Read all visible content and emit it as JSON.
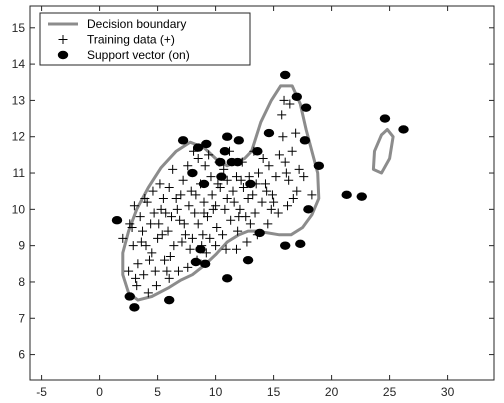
{
  "chart_data": {
    "type": "scatter",
    "title": "",
    "xlabel": "",
    "ylabel": "",
    "xlim": [
      -6,
      34
    ],
    "ylim": [
      5.3,
      15.6
    ],
    "xticks": [
      -5,
      0,
      5,
      10,
      15,
      20,
      25,
      30
    ],
    "yticks": [
      6,
      7,
      8,
      9,
      10,
      11,
      12,
      13,
      14,
      15
    ],
    "grid": false,
    "legend_position": "top-left",
    "colors": {
      "boundary": "#8c8c8c",
      "training": "#000000",
      "support": "#000000",
      "axis": "#262626"
    },
    "legend": [
      {
        "key": "boundary",
        "label": "Decision boundary"
      },
      {
        "key": "training",
        "label": "Training data (+)"
      },
      {
        "key": "support",
        "label": "Support vector (on)"
      }
    ],
    "boundary_main": [
      [
        2.5,
        9.4
      ],
      [
        2.0,
        8.8
      ],
      [
        2.0,
        8.2
      ],
      [
        2.5,
        7.7
      ],
      [
        3.3,
        7.5
      ],
      [
        4.5,
        7.6
      ],
      [
        6.0,
        7.85
      ],
      [
        7.0,
        8.05
      ],
      [
        8.0,
        8.2
      ],
      [
        9.0,
        8.45
      ],
      [
        10.0,
        8.75
      ],
      [
        11.0,
        9.1
      ],
      [
        12.0,
        9.3
      ],
      [
        12.8,
        9.4
      ],
      [
        13.5,
        9.4
      ],
      [
        14.5,
        9.35
      ],
      [
        15.5,
        9.3
      ],
      [
        16.5,
        9.3
      ],
      [
        17.5,
        9.5
      ],
      [
        18.3,
        9.85
      ],
      [
        18.9,
        10.3
      ],
      [
        18.8,
        11.0
      ],
      [
        18.3,
        11.6
      ],
      [
        17.8,
        12.2
      ],
      [
        17.3,
        12.9
      ],
      [
        16.6,
        13.4
      ],
      [
        15.6,
        13.4
      ],
      [
        14.8,
        13.0
      ],
      [
        13.9,
        12.4
      ],
      [
        13.1,
        11.6
      ],
      [
        12.5,
        11.4
      ],
      [
        11.0,
        11.2
      ],
      [
        10.0,
        11.4
      ],
      [
        9.0,
        11.7
      ],
      [
        7.8,
        11.85
      ],
      [
        6.6,
        11.6
      ],
      [
        5.3,
        11.15
      ],
      [
        4.2,
        10.6
      ],
      [
        3.2,
        10.0
      ],
      [
        2.5,
        9.4
      ]
    ],
    "boundary_island": [
      [
        24.8,
        12.2
      ],
      [
        25.3,
        12.0
      ],
      [
        25.0,
        11.4
      ],
      [
        24.3,
        11.0
      ],
      [
        23.6,
        11.1
      ],
      [
        23.7,
        11.6
      ],
      [
        24.3,
        12.05
      ],
      [
        24.8,
        12.2
      ]
    ],
    "training_points": [
      [
        2.0,
        9.2
      ],
      [
        2.6,
        9.6
      ],
      [
        3.0,
        10.1
      ],
      [
        3.5,
        9.8
      ],
      [
        2.9,
        9.0
      ],
      [
        3.7,
        9.4
      ],
      [
        4.1,
        10.2
      ],
      [
        4.6,
        10.5
      ],
      [
        4.0,
        9.0
      ],
      [
        4.5,
        8.8
      ],
      [
        5.1,
        9.6
      ],
      [
        5.5,
        10.3
      ],
      [
        5.2,
        10.7
      ],
      [
        3.3,
        8.5
      ],
      [
        3.8,
        8.2
      ],
      [
        4.3,
        8.6
      ],
      [
        4.8,
        8.3
      ],
      [
        2.5,
        8.3
      ],
      [
        3.2,
        7.9
      ],
      [
        5.0,
        9.2
      ],
      [
        5.7,
        9.9
      ],
      [
        6.0,
        10.6
      ],
      [
        6.3,
        11.1
      ],
      [
        6.6,
        10.3
      ],
      [
        6.9,
        9.7
      ],
      [
        7.2,
        10.8
      ],
      [
        7.4,
        9.3
      ],
      [
        7.7,
        10.1
      ],
      [
        7.9,
        10.5
      ],
      [
        8.2,
        9.9
      ],
      [
        8.5,
        9.6
      ],
      [
        8.7,
        10.7
      ],
      [
        9.0,
        10.2
      ],
      [
        9.3,
        9.8
      ],
      [
        9.6,
        10.9
      ],
      [
        9.8,
        10.0
      ],
      [
        10.1,
        9.5
      ],
      [
        10.4,
        10.6
      ],
      [
        10.7,
        11.1
      ],
      [
        11.0,
        10.3
      ],
      [
        11.3,
        9.7
      ],
      [
        11.5,
        10.5
      ],
      [
        11.8,
        10.9
      ],
      [
        12.1,
        10.0
      ],
      [
        12.4,
        10.6
      ],
      [
        12.6,
        9.8
      ],
      [
        12.9,
        10.9
      ],
      [
        13.2,
        10.4
      ],
      [
        13.4,
        9.9
      ],
      [
        13.7,
        11.0
      ],
      [
        14.0,
        10.2
      ],
      [
        14.3,
        10.7
      ],
      [
        14.6,
        11.2
      ],
      [
        14.9,
        10.4
      ],
      [
        15.2,
        10.9
      ],
      [
        15.5,
        11.5
      ],
      [
        15.8,
        12.0
      ],
      [
        16.0,
        11.3
      ],
      [
        16.3,
        10.8
      ],
      [
        16.6,
        11.6
      ],
      [
        16.9,
        12.1
      ],
      [
        17.2,
        11.1
      ],
      [
        15.7,
        12.6
      ],
      [
        16.4,
        12.9
      ],
      [
        15.9,
        13.0
      ],
      [
        17.0,
        10.5
      ],
      [
        16.2,
        10.1
      ],
      [
        15.4,
        9.9
      ],
      [
        14.5,
        9.6
      ],
      [
        13.6,
        9.3
      ],
      [
        12.7,
        9.1
      ],
      [
        11.8,
        8.9
      ],
      [
        10.9,
        8.9
      ],
      [
        10.0,
        9.0
      ],
      [
        9.2,
        8.8
      ],
      [
        8.4,
        8.6
      ],
      [
        7.6,
        8.4
      ],
      [
        6.8,
        8.3
      ],
      [
        6.0,
        8.1
      ],
      [
        5.6,
        8.6
      ],
      [
        6.4,
        9.0
      ],
      [
        7.1,
        9.1
      ],
      [
        7.8,
        8.9
      ],
      [
        8.9,
        9.3
      ],
      [
        10.6,
        9.3
      ],
      [
        11.9,
        9.4
      ],
      [
        12.3,
        11.3
      ],
      [
        11.2,
        11.6
      ],
      [
        10.3,
        11.3
      ],
      [
        9.4,
        11.5
      ],
      [
        8.5,
        11.4
      ],
      [
        7.6,
        11.2
      ],
      [
        8.1,
        11.6
      ],
      [
        9.1,
        11.2
      ],
      [
        10.8,
        10.0
      ],
      [
        9.7,
        10.4
      ],
      [
        8.3,
        10.4
      ],
      [
        7.3,
        9.6
      ],
      [
        6.7,
        10.0
      ],
      [
        5.9,
        9.4
      ],
      [
        5.3,
        10.0
      ],
      [
        4.4,
        9.6
      ],
      [
        3.9,
        10.3
      ],
      [
        6.1,
        8.7
      ],
      [
        12.0,
        9.8
      ],
      [
        13.0,
        9.6
      ],
      [
        14.1,
        11.4
      ],
      [
        13.3,
        11.6
      ],
      [
        14.8,
        10.0
      ],
      [
        16.7,
        10.3
      ],
      [
        17.6,
        10.9
      ],
      [
        18.3,
        10.4
      ],
      [
        8.8,
        9.0
      ],
      [
        9.5,
        9.2
      ],
      [
        10.2,
        10.7
      ],
      [
        11.6,
        10.2
      ],
      [
        12.8,
        10.3
      ],
      [
        14.4,
        10.5
      ],
      [
        15.0,
        10.2
      ],
      [
        16.1,
        11.0
      ],
      [
        7.0,
        10.4
      ],
      [
        6.2,
        9.8
      ],
      [
        5.4,
        9.3
      ],
      [
        4.7,
        9.9
      ],
      [
        3.6,
        9.1
      ],
      [
        2.8,
        9.5
      ],
      [
        8.0,
        9.2
      ],
      [
        9.0,
        9.9
      ],
      [
        10.0,
        10.1
      ],
      [
        11.0,
        10.8
      ],
      [
        12.2,
        10.8
      ],
      [
        13.5,
        10.7
      ],
      [
        4.9,
        7.9
      ],
      [
        5.8,
        8.3
      ],
      [
        3.1,
        8.1
      ],
      [
        4.2,
        7.7
      ]
    ],
    "support_vectors": [
      [
        1.5,
        9.7
      ],
      [
        2.6,
        7.6
      ],
      [
        3.0,
        7.3
      ],
      [
        6.0,
        7.5
      ],
      [
        8.3,
        8.55
      ],
      [
        9.1,
        8.5
      ],
      [
        8.7,
        8.9
      ],
      [
        11.0,
        8.1
      ],
      [
        12.8,
        8.6
      ],
      [
        13.8,
        9.35
      ],
      [
        16.0,
        9.0
      ],
      [
        17.3,
        9.05
      ],
      [
        18.0,
        10.0
      ],
      [
        18.9,
        11.2
      ],
      [
        21.3,
        10.4
      ],
      [
        22.6,
        10.35
      ],
      [
        24.6,
        12.5
      ],
      [
        26.2,
        12.2
      ],
      [
        17.7,
        11.9
      ],
      [
        17.8,
        12.8
      ],
      [
        17.0,
        13.1
      ],
      [
        16.0,
        13.7
      ],
      [
        14.6,
        12.1
      ],
      [
        13.6,
        11.6
      ],
      [
        12.0,
        11.9
      ],
      [
        11.0,
        12.0
      ],
      [
        10.4,
        11.3
      ],
      [
        9.2,
        11.8
      ],
      [
        8.5,
        11.7
      ],
      [
        7.2,
        11.9
      ],
      [
        11.9,
        11.3
      ],
      [
        13.0,
        10.7
      ],
      [
        8.0,
        11.0
      ],
      [
        9.0,
        10.7
      ],
      [
        10.5,
        10.9
      ],
      [
        11.4,
        11.3
      ],
      [
        10.8,
        11.6
      ]
    ]
  }
}
